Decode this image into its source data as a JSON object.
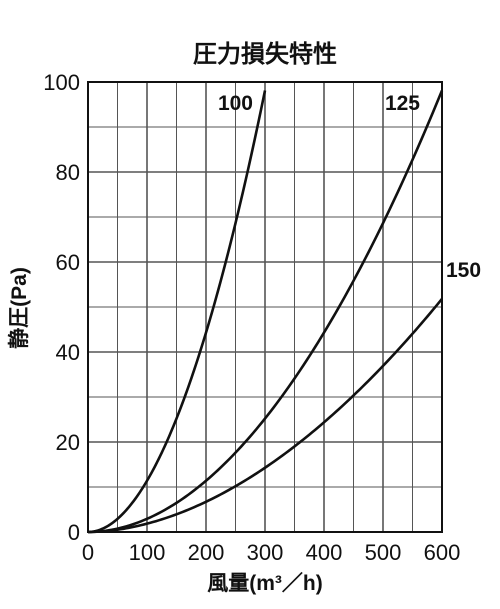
{
  "chart_data": {
    "type": "line",
    "title": "圧力損失特性",
    "xlabel": "風量(m³／h)",
    "ylabel": "静圧(Pa)",
    "xlim": [
      0,
      600
    ],
    "ylim": [
      0,
      100
    ],
    "x_ticks": [
      "0",
      "100",
      "200",
      "300",
      "400",
      "500",
      "600"
    ],
    "y_ticks": [
      "0",
      "20",
      "40",
      "60",
      "80",
      "100"
    ],
    "x_minor_step": 50,
    "y_minor_step": 10,
    "grid": true,
    "series": [
      {
        "name": "100",
        "x": [
          0,
          50,
          100,
          150,
          200,
          250,
          300
        ],
        "y": [
          0,
          3,
          11,
          25,
          44,
          69,
          100
        ]
      },
      {
        "name": "125",
        "x": [
          0,
          100,
          200,
          300,
          400,
          500,
          600
        ],
        "y": [
          0,
          3,
          11,
          25,
          44,
          69,
          100
        ]
      },
      {
        "name": "150",
        "x": [
          0,
          100,
          200,
          300,
          400,
          500,
          600
        ],
        "y": [
          0,
          2,
          6,
          14,
          24,
          38,
          54
        ]
      }
    ]
  }
}
